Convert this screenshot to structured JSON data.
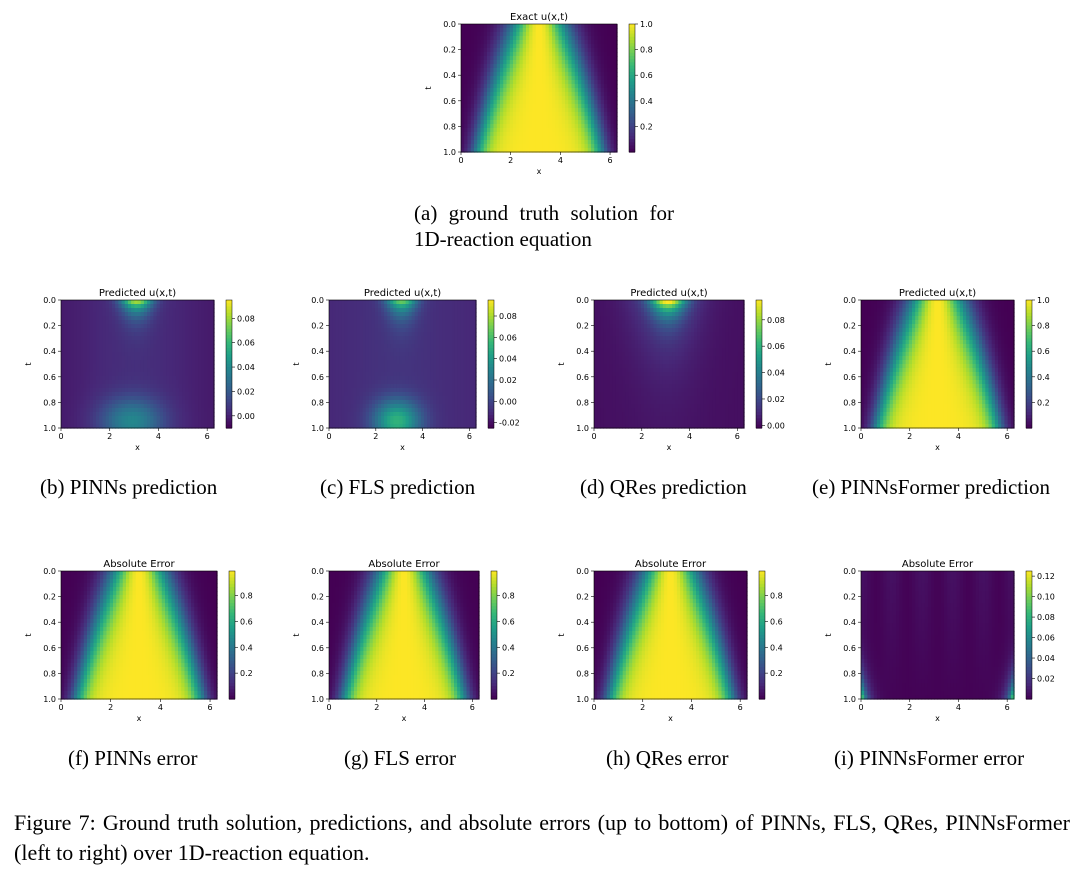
{
  "figure_caption": "Figure 7: Ground truth solution, predictions, and absolute errors (up to bottom) of PINNs, FLS, QRes, PINNsFormer (left to right) over 1D-reaction equation.",
  "chart_data": [
    {
      "id": "a",
      "type": "heatmap",
      "title": "Exact u(x,t)",
      "xlabel": "x",
      "ylabel": "t",
      "colormap": "viridis",
      "xlim": [
        0,
        6.28
      ],
      "ylim": [
        0,
        1
      ],
      "xticks": [
        0,
        2,
        4,
        6
      ],
      "yticks": [
        0.0,
        0.2,
        0.4,
        0.6,
        0.8,
        1.0
      ],
      "clim": [
        0,
        1
      ],
      "cbar_ticks": [
        0.2,
        0.4,
        0.6,
        0.8,
        1.0
      ],
      "field": "exact",
      "caption": "(a) ground truth solution for 1D-reaction equation"
    },
    {
      "id": "b",
      "type": "heatmap",
      "title": "Predicted u(x,t)",
      "xlabel": "x",
      "ylabel": "t",
      "colormap": "viridis",
      "xlim": [
        0,
        6.28
      ],
      "ylim": [
        0,
        1
      ],
      "xticks": [
        0,
        2,
        4,
        6
      ],
      "yticks": [
        0.0,
        0.2,
        0.4,
        0.6,
        0.8,
        1.0
      ],
      "clim": [
        -0.01,
        0.095
      ],
      "cbar_ticks": [
        0.0,
        0.02,
        0.04,
        0.06,
        0.08
      ],
      "field": "pinns_pred",
      "caption": "(b) PINNs prediction"
    },
    {
      "id": "c",
      "type": "heatmap",
      "title": "Predicted u(x,t)",
      "xlabel": "x",
      "ylabel": "t",
      "colormap": "viridis",
      "xlim": [
        0,
        6.28
      ],
      "ylim": [
        0,
        1
      ],
      "xticks": [
        0,
        2,
        4,
        6
      ],
      "yticks": [
        0.0,
        0.2,
        0.4,
        0.6,
        0.8,
        1.0
      ],
      "clim": [
        -0.025,
        0.095
      ],
      "cbar_ticks": [
        -0.02,
        0.0,
        0.02,
        0.04,
        0.06,
        0.08
      ],
      "field": "fls_pred",
      "caption": "(c) FLS prediction"
    },
    {
      "id": "d",
      "type": "heatmap",
      "title": "Predicted u(x,t)",
      "xlabel": "x",
      "ylabel": "t",
      "colormap": "viridis",
      "xlim": [
        0,
        6.28
      ],
      "ylim": [
        0,
        1
      ],
      "xticks": [
        0,
        2,
        4,
        6
      ],
      "yticks": [
        0.0,
        0.2,
        0.4,
        0.6,
        0.8,
        1.0
      ],
      "clim": [
        -0.002,
        0.095
      ],
      "cbar_ticks": [
        0.0,
        0.02,
        0.04,
        0.06,
        0.08
      ],
      "field": "qres_pred",
      "caption": "(d) QRes prediction"
    },
    {
      "id": "e",
      "type": "heatmap",
      "title": "Predicted u(x,t)",
      "xlabel": "x",
      "ylabel": "t",
      "colormap": "viridis",
      "xlim": [
        0,
        6.28
      ],
      "ylim": [
        0,
        1
      ],
      "xticks": [
        0,
        2,
        4,
        6
      ],
      "yticks": [
        0.0,
        0.2,
        0.4,
        0.6,
        0.8,
        1.0
      ],
      "clim": [
        0,
        1
      ],
      "cbar_ticks": [
        0.2,
        0.4,
        0.6,
        0.8,
        1.0
      ],
      "field": "exact",
      "caption": "(e) PINNsFormer prediction"
    },
    {
      "id": "f",
      "type": "heatmap",
      "title": "Absolute Error",
      "xlabel": "x",
      "ylabel": "t",
      "colormap": "viridis",
      "xlim": [
        0,
        6.28
      ],
      "ylim": [
        0,
        1
      ],
      "xticks": [
        0,
        2,
        4,
        6
      ],
      "yticks": [
        0.0,
        0.2,
        0.4,
        0.6,
        0.8,
        1.0
      ],
      "clim": [
        0,
        0.99
      ],
      "cbar_ticks": [
        0.2,
        0.4,
        0.6,
        0.8
      ],
      "field": "err_big",
      "caption": "(f) PINNs error"
    },
    {
      "id": "g",
      "type": "heatmap",
      "title": "Absolute Error",
      "xlabel": "x",
      "ylabel": "t",
      "colormap": "viridis",
      "xlim": [
        0,
        6.28
      ],
      "ylim": [
        0,
        1
      ],
      "xticks": [
        0,
        2,
        4,
        6
      ],
      "yticks": [
        0.0,
        0.2,
        0.4,
        0.6,
        0.8,
        1.0
      ],
      "clim": [
        0,
        0.99
      ],
      "cbar_ticks": [
        0.2,
        0.4,
        0.6,
        0.8
      ],
      "field": "err_big",
      "caption": "(g) FLS error"
    },
    {
      "id": "h",
      "type": "heatmap",
      "title": "Absolute Error",
      "xlabel": "x",
      "ylabel": "t",
      "colormap": "viridis",
      "xlim": [
        0,
        6.28
      ],
      "ylim": [
        0,
        1
      ],
      "xticks": [
        0,
        2,
        4,
        6
      ],
      "yticks": [
        0.0,
        0.2,
        0.4,
        0.6,
        0.8,
        1.0
      ],
      "clim": [
        0,
        0.99
      ],
      "cbar_ticks": [
        0.2,
        0.4,
        0.6,
        0.8
      ],
      "field": "err_big",
      "caption": "(h) QRes error"
    },
    {
      "id": "i",
      "type": "heatmap",
      "title": "Absolute Error",
      "xlabel": "x",
      "ylabel": "t",
      "colormap": "viridis",
      "xlim": [
        0,
        6.28
      ],
      "ylim": [
        0,
        1
      ],
      "xticks": [
        0,
        2,
        4,
        6
      ],
      "yticks": [
        0.0,
        0.2,
        0.4,
        0.6,
        0.8,
        1.0
      ],
      "clim": [
        0,
        0.125
      ],
      "cbar_ticks": [
        0.02,
        0.04,
        0.06,
        0.08,
        0.1,
        0.12
      ],
      "field": "err_small",
      "caption": "(i) PINNsFormer error"
    }
  ]
}
